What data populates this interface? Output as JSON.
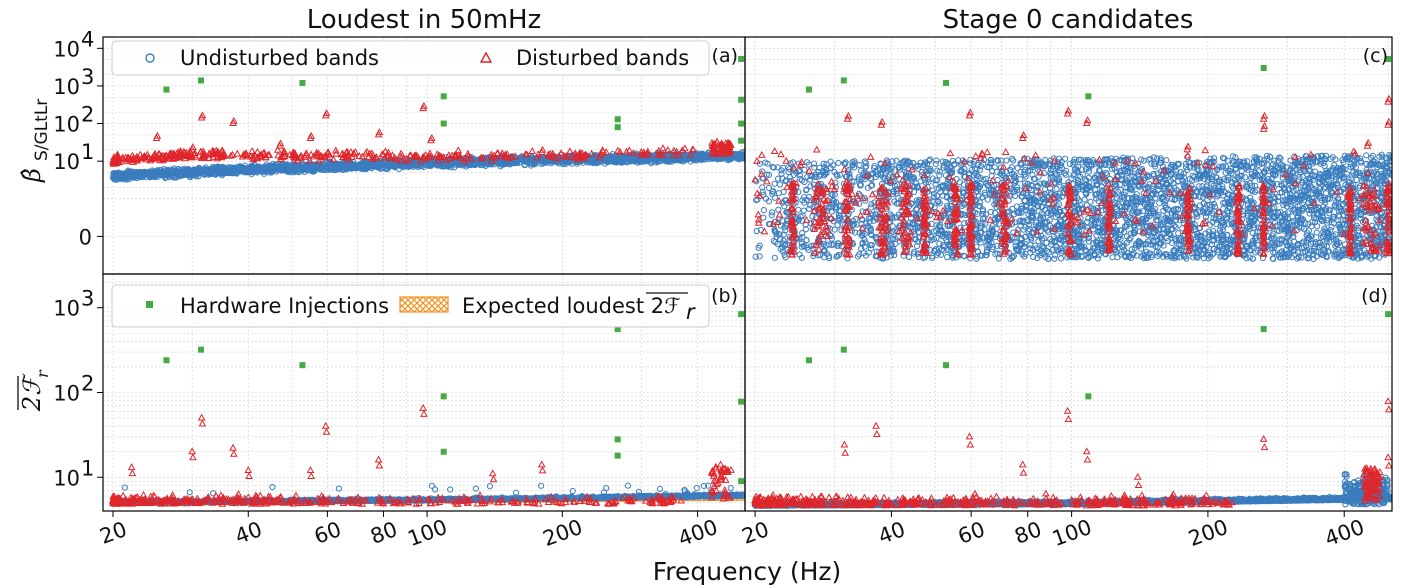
{
  "figure": {
    "col_titles": [
      "Loudest in 50mHz",
      "Stage 0 candidates"
    ],
    "xlabel": "Frequency (Hz)",
    "x_tick_labels": [
      "20",
      "40",
      "60",
      "80",
      "100",
      "200",
      "400"
    ],
    "ylabel_top_main": "β̂",
    "ylabel_top_sub": "S/GLtLr",
    "ylabel_bottom": "2ℱ",
    "ylabel_bottom_sub": "r",
    "top_y_tick_labels": [
      {
        "base": "10",
        "exp": "4"
      },
      {
        "base": "10",
        "exp": "3"
      },
      {
        "base": "10",
        "exp": "2"
      },
      {
        "base": "10",
        "exp": "1"
      },
      {
        "base": "0",
        "exp": ""
      }
    ],
    "bottom_y_tick_labels": [
      {
        "base": "10",
        "exp": "3"
      },
      {
        "base": "10",
        "exp": "2"
      },
      {
        "base": "10",
        "exp": "1"
      }
    ],
    "panel_labels": [
      "(a)",
      "(c)",
      "(b)",
      "(d)"
    ],
    "legend": {
      "undisturbed": "Undisturbed bands",
      "disturbed": "Disturbed bands",
      "hardware": "Hardware Injections",
      "expected": "Expected loudest 2ℱ",
      "expected_sub": "r"
    },
    "colors": {
      "undisturbed": "#3a7dbf",
      "disturbed": "#e0262b",
      "hardware": "#44aa44",
      "expected": "#f29122",
      "grid": "#cfcfcf"
    }
  },
  "chart_data": [
    {
      "panel": "a",
      "type": "scatter",
      "title": "Loudest in 50mHz",
      "xlabel": "Frequency (Hz)",
      "ylabel": "β̂ S/GLtLr",
      "x_scale": "log",
      "y_scale": "symlog",
      "xlim": [
        19,
        510
      ],
      "ylim": [
        -1,
        20000
      ],
      "hardware_injections": [
        [
          26.3,
          800
        ],
        [
          31.4,
          1400
        ],
        [
          52.8,
          1200
        ],
        [
          108.9,
          530
        ],
        [
          108.9,
          100
        ],
        [
          265.6,
          3000
        ],
        [
          265.6,
          130
        ],
        [
          265.6,
          80
        ],
        [
          500,
          5200
        ],
        [
          500,
          430
        ],
        [
          500,
          100
        ],
        [
          500,
          35
        ]
      ],
      "disturbed_trend": [
        [
          20,
          10
        ],
        [
          30,
          15
        ],
        [
          50,
          14
        ],
        [
          100,
          13
        ],
        [
          200,
          14
        ],
        [
          400,
          18
        ],
        [
          500,
          22
        ]
      ],
      "disturbed_outliers": [
        [
          25,
          40
        ],
        [
          30,
          20
        ],
        [
          31.5,
          140
        ],
        [
          37,
          100
        ],
        [
          47,
          25
        ],
        [
          55,
          40
        ],
        [
          59.5,
          160
        ],
        [
          78,
          50
        ],
        [
          98,
          250
        ],
        [
          102,
          35
        ],
        [
          180,
          17
        ],
        [
          440,
          28
        ],
        [
          470,
          25
        ]
      ],
      "undisturbed_trend": [
        [
          20,
          4
        ],
        [
          40,
          6
        ],
        [
          60,
          7
        ],
        [
          100,
          9
        ],
        [
          200,
          11
        ],
        [
          300,
          12
        ],
        [
          500,
          14
        ]
      ]
    },
    {
      "panel": "c",
      "type": "scatter",
      "title": "Stage 0 candidates",
      "xlabel": "Frequency (Hz)",
      "x_scale": "log",
      "y_scale": "symlog",
      "xlim": [
        19,
        510
      ],
      "ylim": [
        -1,
        20000
      ],
      "hardware_injections": [
        [
          26.3,
          800
        ],
        [
          31.4,
          1400
        ],
        [
          52.8,
          1200
        ],
        [
          108.9,
          530
        ],
        [
          265.6,
          3000
        ],
        [
          500,
          5200
        ]
      ],
      "disturbed_outliers": [
        [
          32,
          130
        ],
        [
          38,
          90
        ],
        [
          59.5,
          160
        ],
        [
          78,
          40
        ],
        [
          98,
          180
        ],
        [
          108,
          100
        ],
        [
          180,
          20
        ],
        [
          265.6,
          130
        ],
        [
          265.6,
          70
        ],
        [
          500,
          370
        ],
        [
          500,
          90
        ],
        [
          450,
          25
        ]
      ],
      "undisturbed_range": [
        [
          20,
          -0.5,
          10
        ],
        [
          100,
          -0.5,
          12
        ],
        [
          500,
          -0.5,
          15
        ]
      ]
    },
    {
      "panel": "b",
      "type": "scatter",
      "xlabel": "Frequency (Hz)",
      "ylabel": "2ℱ r",
      "x_scale": "log",
      "y_scale": "log",
      "xlim": [
        19,
        510
      ],
      "ylim": [
        4,
        2500
      ],
      "hardware_injections": [
        [
          26.3,
          240
        ],
        [
          31.4,
          320
        ],
        [
          52.8,
          210
        ],
        [
          108.9,
          90
        ],
        [
          108.9,
          20
        ],
        [
          265.6,
          560
        ],
        [
          265.6,
          28
        ],
        [
          265.6,
          18
        ],
        [
          500,
          840
        ],
        [
          500,
          78
        ],
        [
          500,
          9
        ]
      ],
      "disturbed_outliers": [
        [
          22,
          13
        ],
        [
          30,
          20
        ],
        [
          31.5,
          50
        ],
        [
          37,
          22
        ],
        [
          40,
          12
        ],
        [
          55,
          12
        ],
        [
          59.5,
          40
        ],
        [
          78,
          16
        ],
        [
          98,
          65
        ],
        [
          140,
          11
        ],
        [
          180,
          14
        ],
        [
          450,
          14
        ]
      ],
      "expected_loudest": [
        [
          20,
          4.9
        ],
        [
          100,
          5.3
        ],
        [
          500,
          5.7
        ]
      ],
      "undisturbed_trend": [
        [
          20,
          5
        ],
        [
          100,
          5.3
        ],
        [
          500,
          6
        ]
      ]
    },
    {
      "panel": "d",
      "type": "scatter",
      "xlabel": "Frequency (Hz)",
      "x_scale": "log",
      "y_scale": "log",
      "xlim": [
        19,
        510
      ],
      "ylim": [
        4,
        2500
      ],
      "hardware_injections": [
        [
          26.3,
          240
        ],
        [
          31.4,
          320
        ],
        [
          52.8,
          210
        ],
        [
          108.9,
          90
        ],
        [
          265.6,
          560
        ],
        [
          500,
          840
        ]
      ],
      "disturbed_outliers": [
        [
          31.5,
          24
        ],
        [
          37,
          40
        ],
        [
          59.5,
          30
        ],
        [
          78,
          14
        ],
        [
          98,
          60
        ],
        [
          108,
          20
        ],
        [
          140,
          10
        ],
        [
          265.6,
          28
        ],
        [
          500,
          78
        ],
        [
          500,
          17
        ]
      ],
      "undisturbed_trend": [
        [
          20,
          4.6
        ],
        [
          100,
          4.8
        ],
        [
          500,
          5.5
        ]
      ]
    }
  ]
}
